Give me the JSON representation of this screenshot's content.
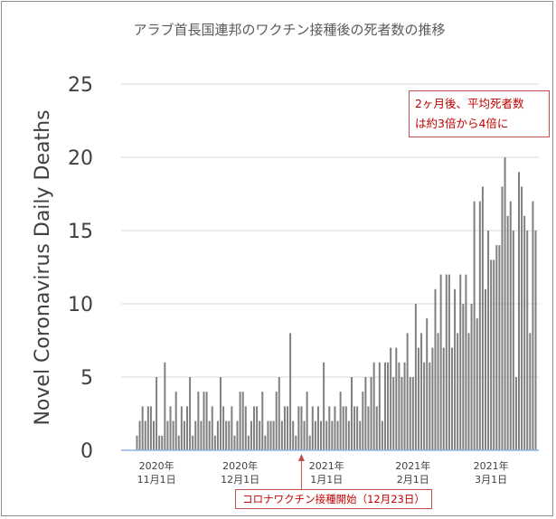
{
  "chart_data": {
    "type": "bar",
    "title": "アラブ首長国連邦のワクチン接種後の死者数の推移",
    "ylabel": "Novel Coronavirus Daily Deaths",
    "xlabel": "",
    "ylim": [
      0,
      25
    ],
    "yticks": [
      0,
      5,
      10,
      15,
      20,
      25
    ],
    "xtick_labels": [
      {
        "year": "2020年",
        "date": "11月1日",
        "index": 7
      },
      {
        "year": "2020年",
        "date": "12月1日",
        "index": 37
      },
      {
        "year": "2021年",
        "date": "1月1日",
        "index": 68
      },
      {
        "year": "2021年",
        "date": "2月1日",
        "index": 99
      },
      {
        "year": "2021年",
        "date": "3月1日",
        "index": 127
      }
    ],
    "values": [
      1,
      2,
      3,
      2,
      3,
      3,
      2,
      5,
      1,
      1,
      6,
      2,
      3,
      2,
      4,
      1,
      3,
      2,
      3,
      5,
      1,
      2,
      4,
      2,
      4,
      4,
      2,
      3,
      1,
      2,
      5,
      3,
      2,
      2,
      3,
      1,
      2,
      4,
      4,
      3,
      1,
      2,
      3,
      3,
      2,
      4,
      1,
      2,
      2,
      2,
      4,
      5,
      2,
      3,
      3,
      8,
      2,
      1,
      3,
      3,
      2,
      4,
      1,
      3,
      2,
      3,
      2,
      6,
      2,
      3,
      2,
      3,
      2,
      4,
      3,
      3,
      2,
      5,
      3,
      3,
      2,
      4,
      5,
      3,
      5,
      6,
      3,
      6,
      2,
      6,
      6,
      7,
      5,
      7,
      6,
      5,
      6,
      8,
      5,
      5,
      10,
      7,
      8,
      6,
      9,
      6,
      7,
      11,
      8,
      12,
      7,
      12,
      12,
      7,
      11,
      8,
      12,
      10,
      12,
      8,
      10,
      17,
      9,
      17,
      18,
      11,
      15,
      13,
      13,
      14,
      14,
      18,
      20,
      16,
      17,
      15,
      5,
      19,
      18,
      16,
      15,
      8,
      17,
      15
    ],
    "annotations": [
      {
        "text_line1": "2ヶ月後、平均死者数",
        "text_line2": "は約3倍から4倍に"
      },
      {
        "text": "コロナワクチン接種開始（12月23日）",
        "index": 59
      }
    ],
    "bar_color": "#808080",
    "axis_color": "#8eb4e3",
    "annotation_color": "#c00000",
    "annotation_border": "#c0504d"
  }
}
